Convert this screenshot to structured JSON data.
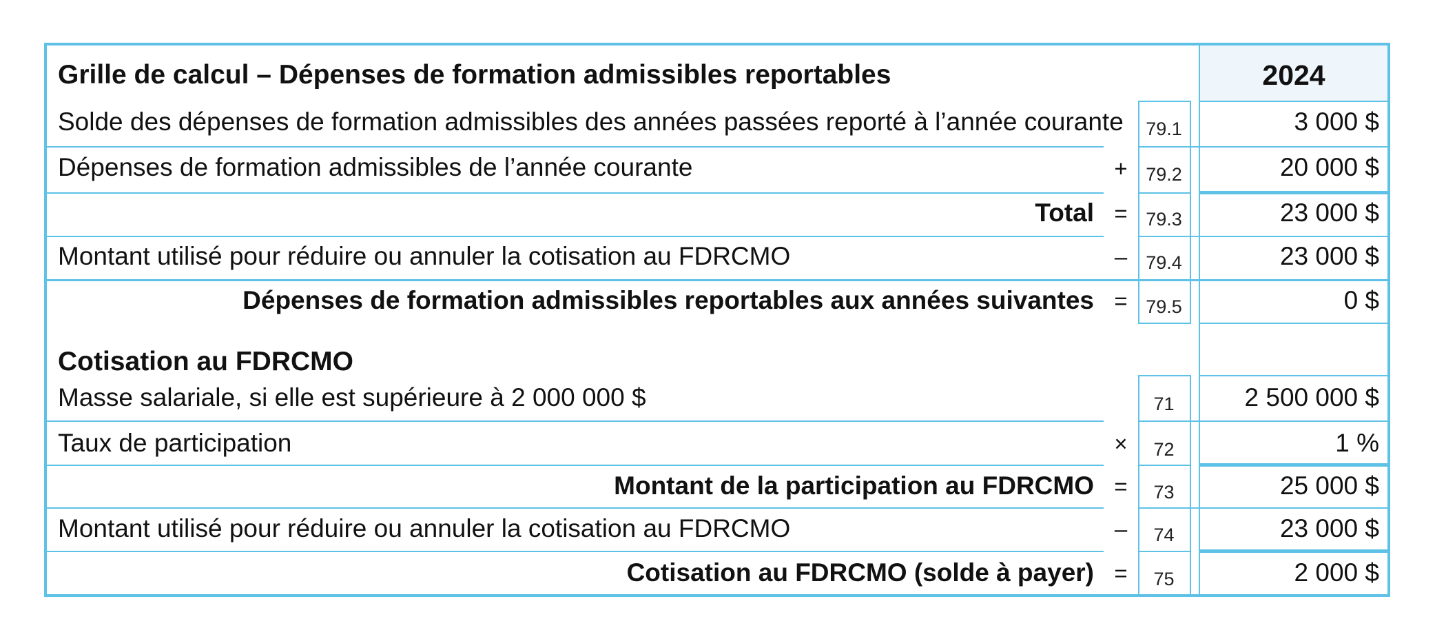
{
  "section1": {
    "title": "Grille de calcul – Dépenses de formation admissibles reportables",
    "year": "2024",
    "rows": [
      {
        "label": "Solde des dépenses de formation admissibles des années passées reporté à l’année courante",
        "op": "",
        "code": "79.1",
        "value": "3 000 $"
      },
      {
        "label": "Dépenses de formation admissibles de l’année courante",
        "op": "+",
        "code": "79.2",
        "value": "20 000 $"
      },
      {
        "label": "Total",
        "op": "=",
        "code": "79.3",
        "value": "23 000 $"
      },
      {
        "label": "Montant utilisé pour réduire ou annuler la cotisation au FDRCMO",
        "op": "–",
        "code": "79.4",
        "value": "23 000 $"
      },
      {
        "label": "Dépenses de formation admissibles reportables aux années suivantes",
        "op": "=",
        "code": "79.5",
        "value": "0 $"
      }
    ]
  },
  "section2": {
    "title": "Cotisation au FDRCMO",
    "rows": [
      {
        "label": "Masse salariale, si elle est supérieure à 2 000 000 $",
        "op": "",
        "code": "71",
        "value": "2 500 000 $"
      },
      {
        "label": "Taux de participation",
        "op": "×",
        "code": "72",
        "value": "1 %"
      },
      {
        "label": "Montant de la participation au FDRCMO",
        "op": "=",
        "code": "73",
        "value": "25 000 $"
      },
      {
        "label": "Montant utilisé pour réduire ou annuler la cotisation au FDRCMO",
        "op": "–",
        "code": "74",
        "value": "23 000 $"
      },
      {
        "label": "Cotisation au FDRCMO (solde à payer)",
        "op": "=",
        "code": "75",
        "value": "2 000 $"
      }
    ]
  }
}
